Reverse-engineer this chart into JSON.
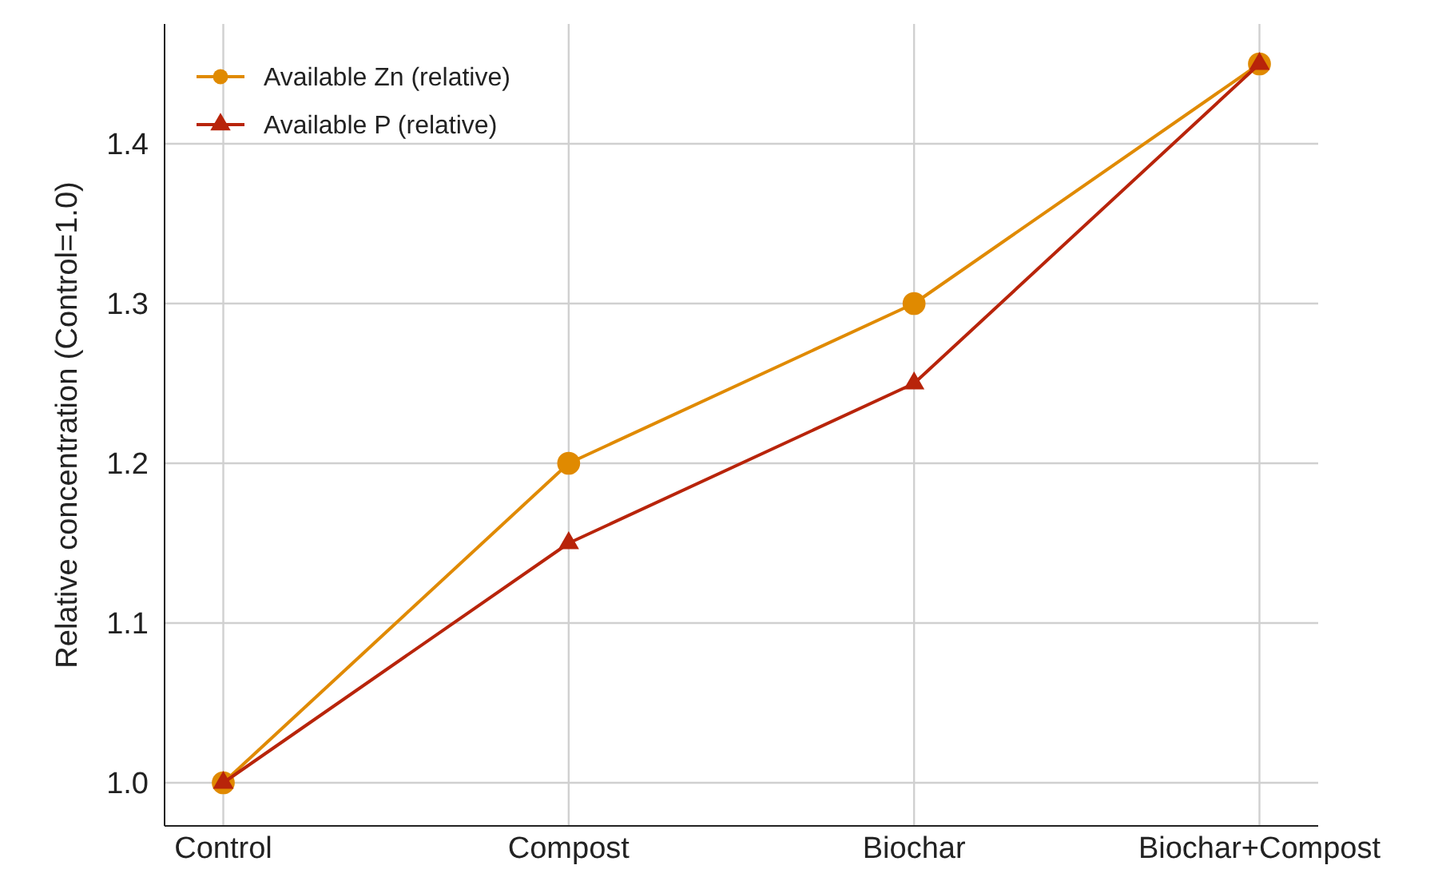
{
  "chart_data": {
    "type": "line",
    "ylabel": "Relative concentration (Control=1.0)",
    "categories": [
      "Control",
      "Compost",
      "Biochar",
      "Biochar+Compost"
    ],
    "series": [
      {
        "name": "Available Zn (relative)",
        "color": "#e08a00",
        "marker": "circle",
        "values": [
          1.0,
          1.2,
          1.3,
          1.45
        ]
      },
      {
        "name": "Available P (relative)",
        "color": "#b8240a",
        "marker": "triangle",
        "values": [
          1.0,
          1.15,
          1.25,
          1.45
        ]
      }
    ],
    "ylim": [
      0.973,
      1.475
    ],
    "yticks": [
      {
        "value": 1.0,
        "label": "1.0"
      },
      1.1,
      1.2,
      1.3,
      1.4
    ],
    "grid": true,
    "legend": "top left",
    "line_style": "solid"
  }
}
